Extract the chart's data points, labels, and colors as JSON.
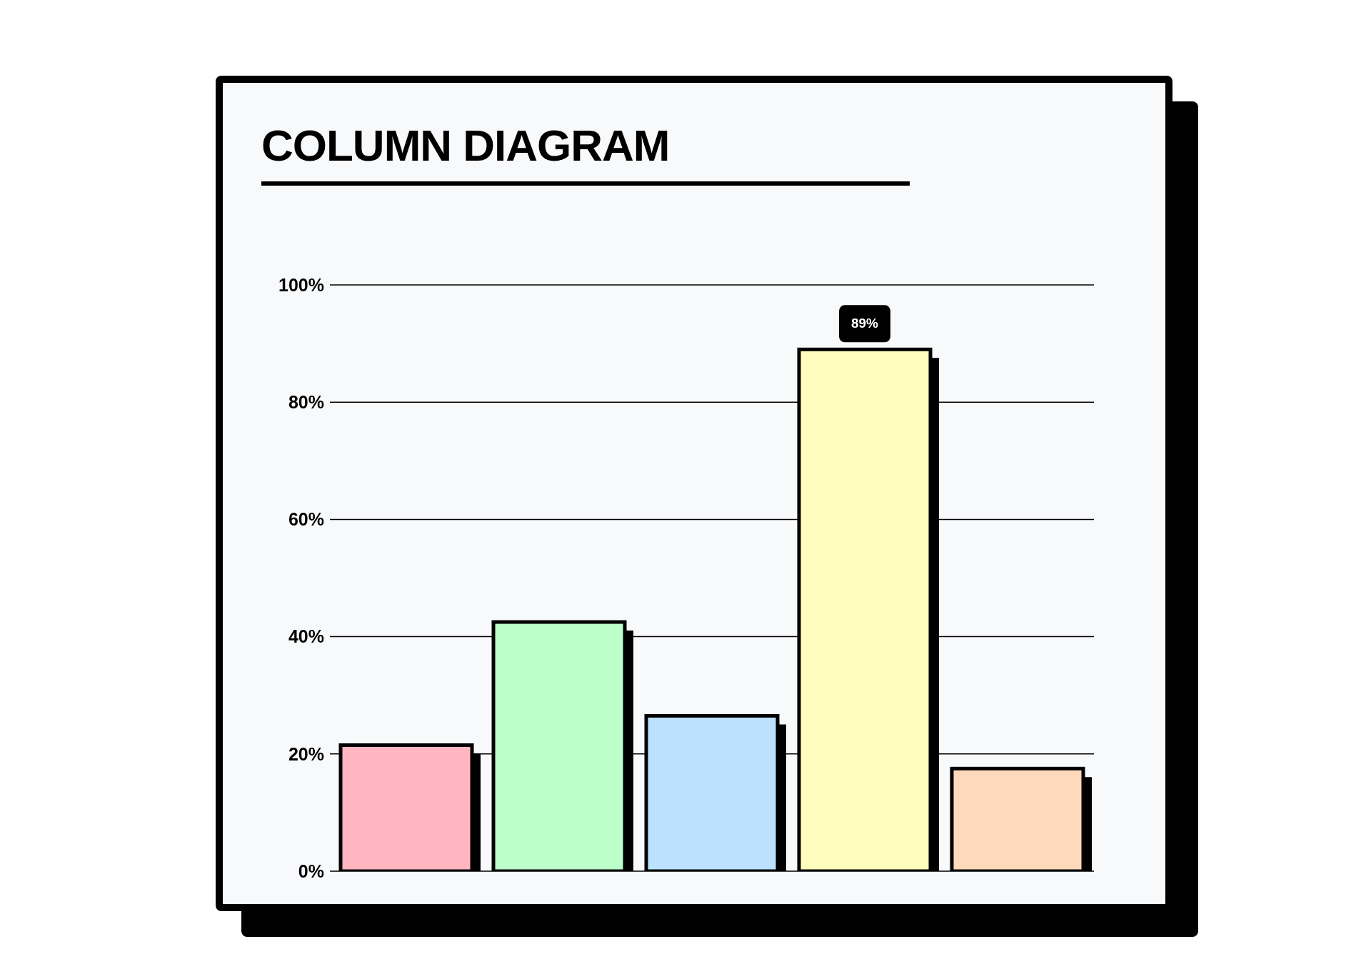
{
  "chart_data": {
    "type": "bar",
    "title": "COLUMN DIAGRAM",
    "categories": [
      null,
      null,
      null,
      null,
      null
    ],
    "values": [
      21.5,
      42.5,
      26.5,
      89,
      17.5
    ],
    "colors": [
      "#ffb6c1",
      "#bbffc9",
      "#bbe1ff",
      "#fffdbb",
      "#ffd9bb"
    ],
    "value_labels": [
      null,
      null,
      null,
      "89%",
      null
    ],
    "ylim": [
      0,
      100
    ],
    "yticks": [
      {
        "value": 0,
        "label": "0%"
      },
      {
        "value": 20,
        "label": "20%"
      },
      {
        "value": 40,
        "label": "40%"
      },
      {
        "value": 60,
        "label": "60%"
      },
      {
        "value": 80,
        "label": "80%"
      },
      {
        "value": 100,
        "label": "100%"
      }
    ],
    "grid": "y",
    "tick_labels": "y"
  }
}
